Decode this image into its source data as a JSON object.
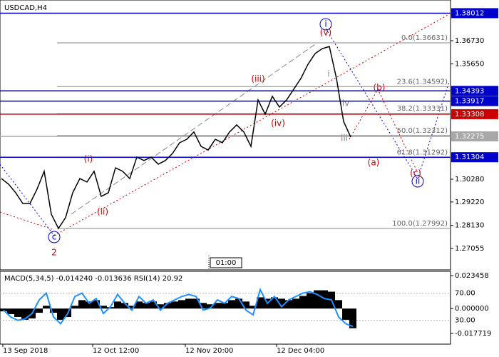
{
  "chart_data": {
    "type": "line",
    "symbol": "USDCAD,H4",
    "ylim": [
      1.26058,
      1.38625
    ],
    "yticks": [
      {
        "value": 1.3673,
        "label": "1.36730"
      },
      {
        "value": 1.3565,
        "label": "1.35650"
      },
      {
        "value": 1.3028,
        "label": "1.30280"
      },
      {
        "value": 1.2922,
        "label": "1.29220"
      },
      {
        "value": 1.2813,
        "label": "1.28130"
      },
      {
        "value": 1.27055,
        "label": "1.27055"
      }
    ],
    "levels": [
      {
        "value": 1.38012,
        "color": "#0000cc"
      },
      {
        "value": 1.34393,
        "color": "#0000cc"
      },
      {
        "value": 1.33917,
        "color": "#0000cc"
      },
      {
        "value": 1.33308,
        "color": "#cc0000"
      },
      {
        "value": 1.32275,
        "color": "#a8a8a8"
      },
      {
        "value": 1.31304,
        "color": "#0000cc"
      }
    ],
    "fibonacci": [
      {
        "label": "0.0(1.36631)",
        "value": 1.36631
      },
      {
        "label": "23.6(1.34592)",
        "value": 1.34592
      },
      {
        "label": "38.2(1.33331)",
        "value": 1.33331
      },
      {
        "label": "50.0(1.32312)",
        "value": 1.32312
      },
      {
        "label": "61.8(1.31292)",
        "value": 1.31292
      },
      {
        "label": "100.0(1.27992)",
        "value": 1.27992
      }
    ],
    "price": {
      "color": "#000000",
      "values": [
        1.3031,
        1.3005,
        1.2965,
        1.2915,
        1.2915,
        1.2982,
        1.3065,
        1.2865,
        1.2799,
        1.2849,
        1.2965,
        1.3031,
        1.3015,
        1.3065,
        1.2948,
        1.2965,
        1.3081,
        1.3065,
        1.3031,
        1.3131,
        1.3115,
        1.3131,
        1.3098,
        1.3115,
        1.3148,
        1.3198,
        1.3214,
        1.3248,
        1.3181,
        1.3164,
        1.3214,
        1.3198,
        1.3248,
        1.3281,
        1.3248,
        1.3181,
        1.3397,
        1.3331,
        1.3414,
        1.3364,
        1.3397,
        1.3447,
        1.3497,
        1.3563,
        1.3613,
        1.3636,
        1.3646,
        1.3497,
        1.3297,
        1.3224
      ]
    },
    "wave_labels": [
      "i",
      "(v)",
      "(iii)",
      "(iv)",
      "(i)",
      "(ii)",
      "c",
      "2",
      "(a)",
      "(b)",
      "(c)",
      "ii",
      "i",
      "iv",
      "iii"
    ],
    "x_labels": [
      "13 Sep 2018",
      "12 Oct 12:00",
      "12 Nov 20:00",
      "12 Dec 04:00"
    ],
    "time_marker": "01:00",
    "indicator": {
      "title": "MACD(5,34,5) -0.014240 -0.013636 RSI(14) 20.92",
      "ylim": [
        -0.02534,
        0.02651
      ],
      "yticks": [
        0.023458,
        {
          "value": 0,
          "label": "0.000000"
        },
        -0.017719
      ],
      "macd": {
        "color": "#000000",
        "values": [
          -0.002,
          -0.004,
          -0.006,
          -0.008,
          -0.007,
          -0.003,
          0.002,
          -0.003,
          -0.008,
          -0.006,
          0.002,
          0.006,
          0.005,
          0.006,
          0.002,
          0.001,
          0.005,
          0.004,
          0.002,
          0.005,
          0.004,
          0.005,
          0.003,
          0.004,
          0.005,
          0.006,
          0.007,
          0.007,
          0.004,
          0.003,
          0.004,
          0.004,
          0.006,
          0.007,
          0.005,
          0.002,
          0.008,
          0.007,
          0.008,
          0.007,
          0.006,
          0.007,
          0.009,
          0.011,
          0.013,
          0.013,
          0.012,
          0.006,
          -0.008,
          -0.014
        ]
      },
      "rsi": {
        "color": "#1e90ff",
        "ylim": [
          -5,
          102
        ],
        "yticks": [
          {
            "value": 70,
            "label": "70.00"
          },
          {
            "value": 30,
            "label": "30.00"
          }
        ],
        "values": [
          45,
          35,
          30,
          32,
          40,
          60,
          70,
          35,
          25,
          40,
          65,
          70,
          55,
          62,
          40,
          50,
          68,
          55,
          45,
          65,
          55,
          60,
          45,
          55,
          60,
          65,
          68,
          65,
          45,
          48,
          60,
          55,
          65,
          62,
          45,
          38,
          75,
          55,
          65,
          50,
          60,
          65,
          70,
          72,
          68,
          62,
          60,
          35,
          25,
          21
        ]
      }
    }
  }
}
